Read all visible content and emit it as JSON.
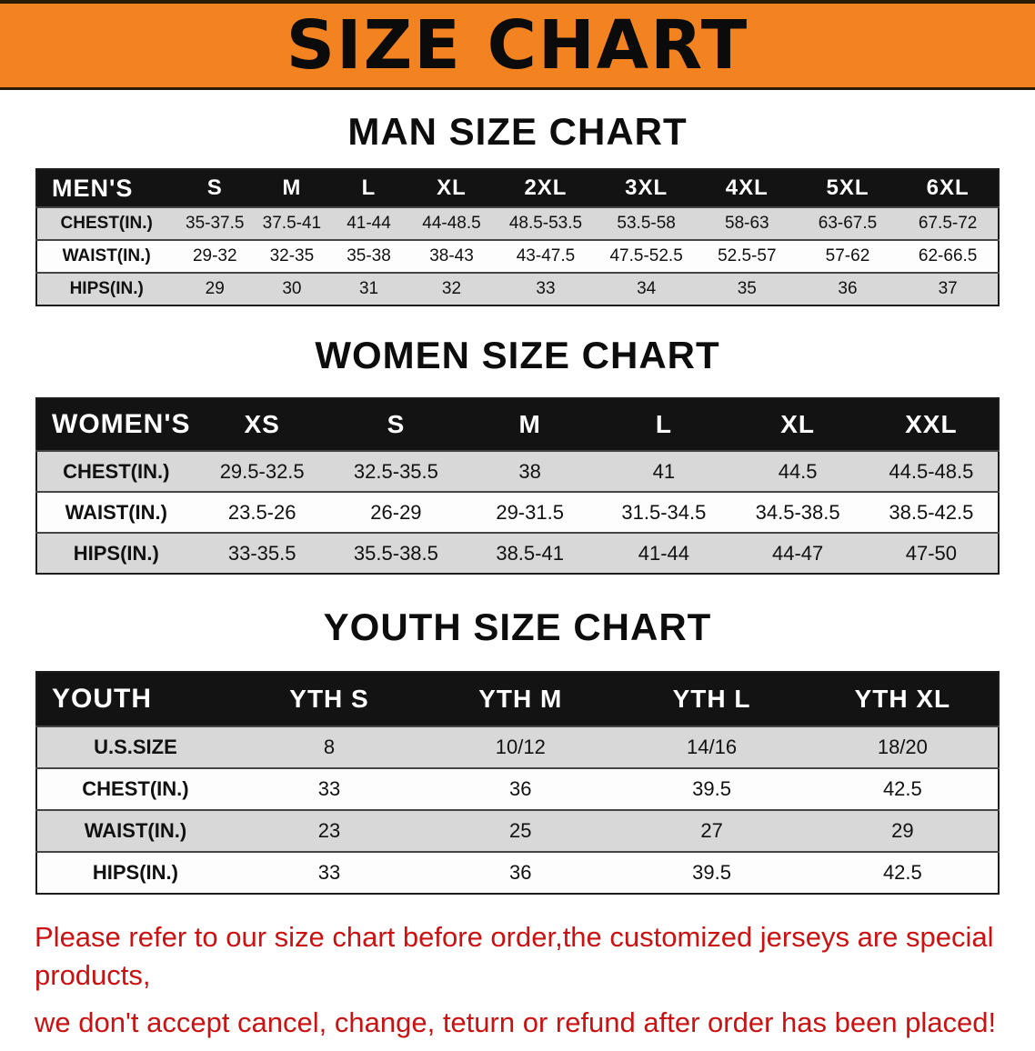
{
  "banner": {
    "title": "SIZE CHART"
  },
  "sections": [
    {
      "id": "men",
      "heading": "MAN SIZE CHART",
      "table": {
        "corner": "MEN'S",
        "columns": [
          "S",
          "M",
          "L",
          "XL",
          "2XL",
          "3XL",
          "4XL",
          "5XL",
          "6XL"
        ],
        "rows": [
          {
            "label": "CHEST(IN.)",
            "values": [
              "35-37.5",
              "37.5-41",
              "41-44",
              "44-48.5",
              "48.5-53.5",
              "53.5-58",
              "58-63",
              "63-67.5",
              "67.5-72"
            ]
          },
          {
            "label": "WAIST(IN.)",
            "values": [
              "29-32",
              "32-35",
              "35-38",
              "38-43",
              "43-47.5",
              "47.5-52.5",
              "52.5-57",
              "57-62",
              "62-66.5"
            ]
          },
          {
            "label": "HIPS(IN.)",
            "values": [
              "29",
              "30",
              "31",
              "32",
              "33",
              "34",
              "35",
              "36",
              "37"
            ]
          }
        ]
      }
    },
    {
      "id": "women",
      "heading": "WOMEN SIZE CHART",
      "table": {
        "corner": "WOMEN'S",
        "columns": [
          "XS",
          "S",
          "M",
          "L",
          "XL",
          "XXL"
        ],
        "rows": [
          {
            "label": "CHEST(IN.)",
            "values": [
              "29.5-32.5",
              "32.5-35.5",
              "38",
              "41",
              "44.5",
              "44.5-48.5"
            ]
          },
          {
            "label": "WAIST(IN.)",
            "values": [
              "23.5-26",
              "26-29",
              "29-31.5",
              "31.5-34.5",
              "34.5-38.5",
              "38.5-42.5"
            ]
          },
          {
            "label": "HIPS(IN.)",
            "values": [
              "33-35.5",
              "35.5-38.5",
              "38.5-41",
              "41-44",
              "44-47",
              "47-50"
            ]
          }
        ]
      }
    },
    {
      "id": "youth",
      "heading": "YOUTH SIZE CHART",
      "table": {
        "corner": "YOUTH",
        "columns": [
          "YTH S",
          "YTH M",
          "YTH L",
          "YTH XL"
        ],
        "rows": [
          {
            "label": "U.S.SIZE",
            "values": [
              "8",
              "10/12",
              "14/16",
              "18/20"
            ]
          },
          {
            "label": "CHEST(IN.)",
            "values": [
              "33",
              "36",
              "39.5",
              "42.5"
            ]
          },
          {
            "label": "WAIST(IN.)",
            "values": [
              "23",
              "25",
              "27",
              "29"
            ]
          },
          {
            "label": "HIPS(IN.)",
            "values": [
              "33",
              "36",
              "39.5",
              "42.5"
            ]
          }
        ]
      }
    }
  ],
  "footer": {
    "line1": "Please refer to our size chart before order,the customized jerseys are special products,",
    "line2": "we don't accept cancel, change, teturn or refund after order has been placed!"
  },
  "colors": {
    "banner_orange": "#F28320",
    "header_black": "#131313",
    "row_gray": "#D8D8D8",
    "footer_red": "#CB1111"
  }
}
